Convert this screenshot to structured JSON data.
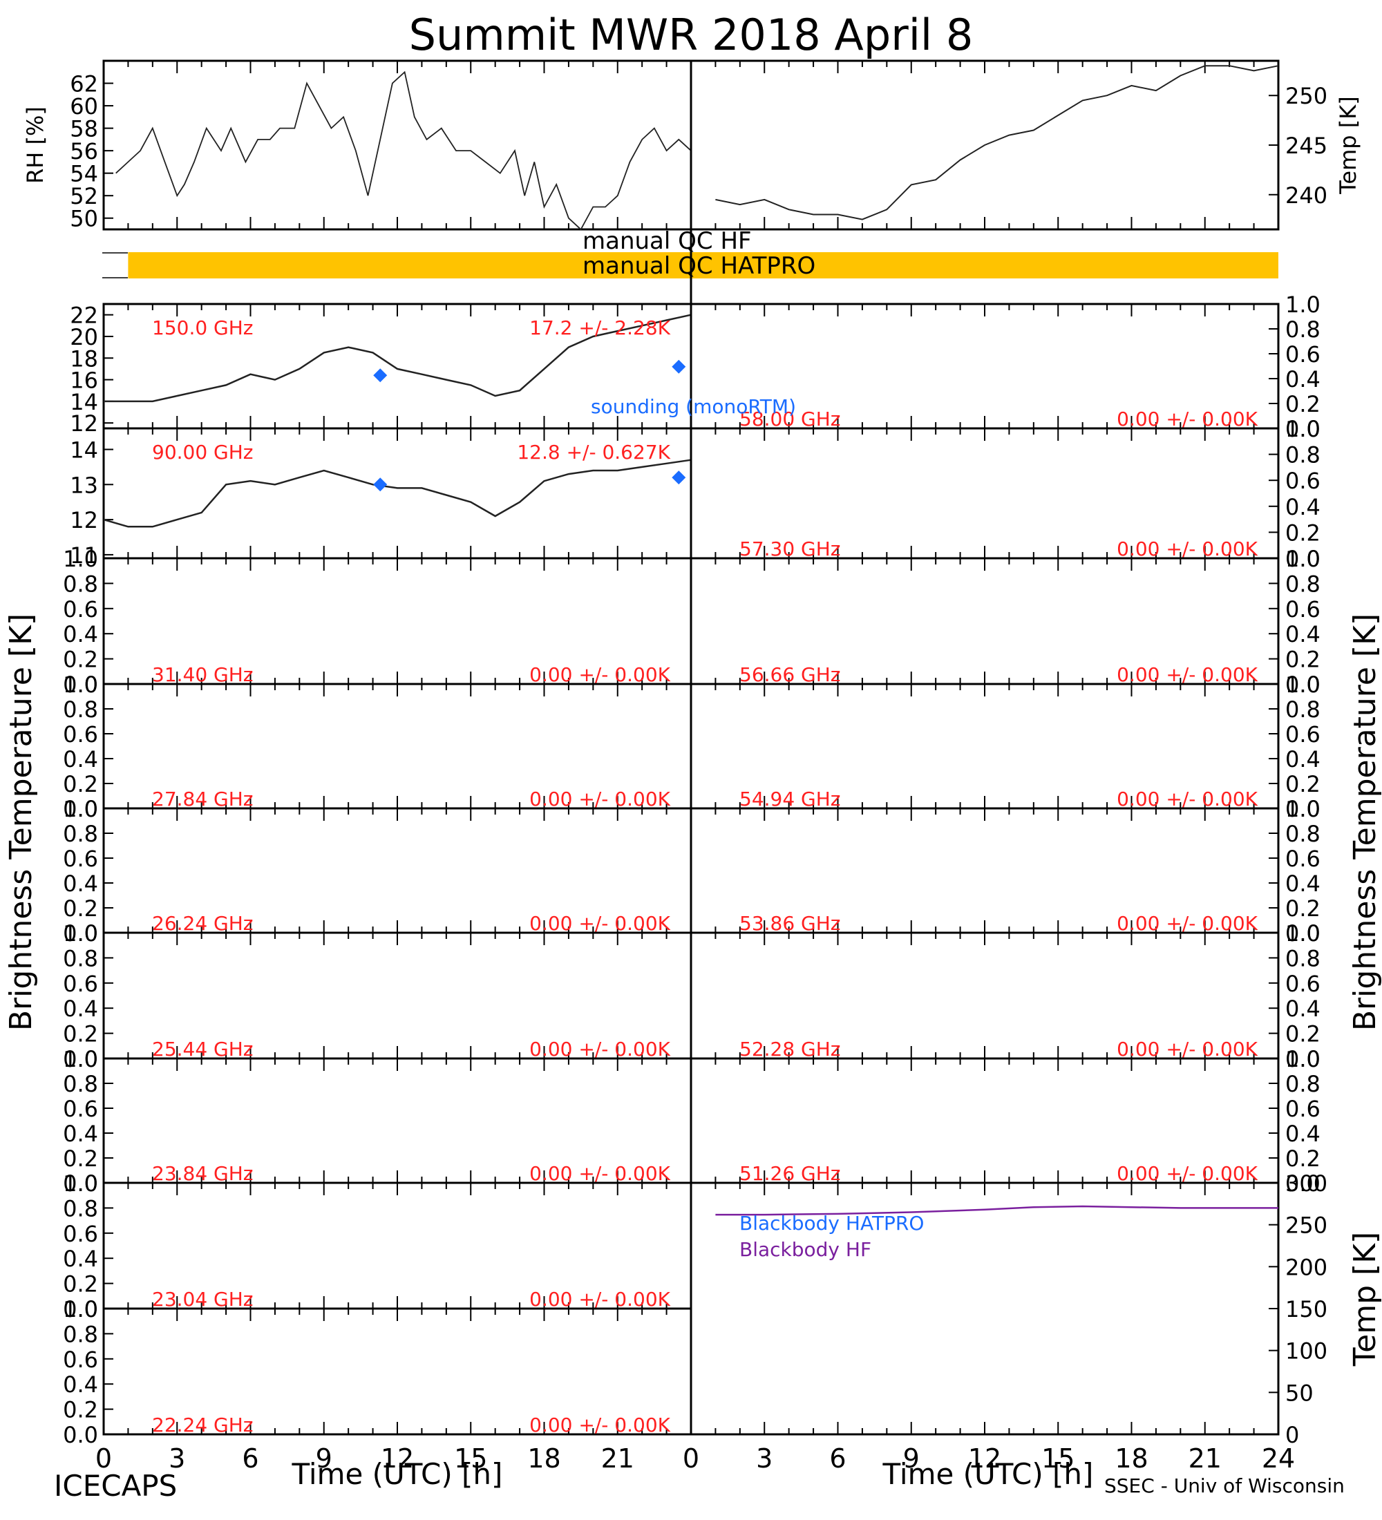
{
  "title": "Summit MWR 2018 April  8",
  "footer_left": "ICECAPS",
  "footer_right": "SSEC - Univ of Wisconsin",
  "colors": {
    "axis": "#000000",
    "label_red": "#ff2020",
    "sounding_blue": "#1a6cff",
    "qc_bar": "#ffc300",
    "blackbody_hf": "#7a1f9e",
    "blackbody_hatpro": "#1a6cff"
  },
  "chart_data": [
    {
      "id": "rh",
      "type": "line",
      "ylabel": "RH [%]",
      "ylim": [
        49,
        64
      ],
      "yticks": [
        50,
        52,
        54,
        56,
        58,
        60,
        62
      ],
      "x": [
        0.5,
        1.0,
        1.5,
        2.0,
        2.5,
        3.0,
        3.3,
        3.7,
        4.2,
        4.8,
        5.2,
        5.8,
        6.3,
        6.8,
        7.2,
        7.8,
        8.3,
        8.8,
        9.3,
        9.8,
        10.3,
        10.8,
        11.3,
        11.8,
        12.3,
        12.7,
        13.2,
        13.8,
        14.4,
        15.0,
        15.6,
        16.2,
        16.8,
        17.2,
        17.6,
        18.0,
        18.5,
        19.0,
        19.5,
        20.0,
        20.5,
        21.0,
        21.5,
        22.0,
        22.5,
        23.0,
        23.5,
        24.0
      ],
      "y": [
        54,
        55,
        56,
        58,
        55,
        52,
        53,
        55,
        58,
        56,
        58,
        55,
        57,
        57,
        58,
        58,
        62,
        60,
        58,
        59,
        56,
        52,
        57,
        62,
        63,
        59,
        57,
        58,
        56,
        56,
        55,
        54,
        56,
        52,
        55,
        51,
        53,
        50,
        49,
        51,
        51,
        52,
        55,
        57,
        58,
        56,
        57,
        56
      ],
      "annotations": []
    },
    {
      "id": "temp",
      "type": "line",
      "ylabel": "Temp [K]",
      "ylim": [
        236.5,
        253.5
      ],
      "yticks": [
        240,
        245,
        250
      ],
      "x": [
        1,
        2,
        3,
        4,
        5,
        6,
        7,
        8,
        9,
        10,
        11,
        12,
        13,
        14,
        15,
        16,
        17,
        18,
        19,
        20,
        21,
        22,
        23,
        24
      ],
      "y": [
        239.5,
        239,
        239.5,
        238.5,
        238,
        238,
        237.5,
        238.5,
        241,
        241.5,
        243.5,
        245,
        246,
        246.5,
        248,
        249.5,
        250,
        251,
        250.5,
        252,
        253,
        253,
        252.5,
        253
      ],
      "annotations": []
    },
    {
      "id": "tb150",
      "type": "line",
      "freq": "150.0 GHz",
      "stat": "17.2 +/- 2.28K",
      "ylim": [
        11.5,
        23
      ],
      "yticks": [
        12,
        14,
        16,
        18,
        20,
        22
      ],
      "x": [
        0,
        1,
        2,
        3,
        4,
        5,
        6,
        7,
        8,
        9,
        10,
        11,
        12,
        13,
        14,
        15,
        16,
        17,
        18,
        19,
        20,
        21,
        22,
        23,
        24
      ],
      "y": [
        14,
        14,
        14,
        14.5,
        15,
        15.5,
        16.5,
        16,
        17,
        18.5,
        19,
        18.5,
        17,
        16.5,
        16,
        15.5,
        14.5,
        15,
        17,
        19,
        20,
        20.5,
        21,
        21.5,
        22
      ],
      "sounding": {
        "x": [
          11.3,
          23.5
        ],
        "y": [
          16.4,
          17.2
        ]
      },
      "annotations": [
        "sounding (monoRTM)"
      ]
    },
    {
      "id": "tb90",
      "type": "line",
      "freq": "90.00 GHz",
      "stat": "12.8 +/- 0.627K",
      "ylim": [
        10.9,
        14.6
      ],
      "yticks": [
        11,
        12,
        13,
        14
      ],
      "x": [
        0,
        1,
        2,
        3,
        4,
        5,
        6,
        7,
        8,
        9,
        10,
        11,
        12,
        13,
        14,
        15,
        16,
        17,
        18,
        19,
        20,
        21,
        22,
        23,
        24
      ],
      "y": [
        12,
        11.8,
        11.8,
        12,
        12.2,
        13,
        13.1,
        13,
        13.2,
        13.4,
        13.2,
        13,
        12.9,
        12.9,
        12.7,
        12.5,
        12.1,
        12.5,
        13.1,
        13.3,
        13.4,
        13.4,
        13.5,
        13.6,
        13.7
      ],
      "sounding": {
        "x": [
          11.3,
          23.5
        ],
        "y": [
          13.0,
          13.2
        ]
      },
      "annotations": []
    },
    {
      "id": "tb58000",
      "type": "line",
      "freq": "58.00 GHz",
      "stat": "0.00 +/- 0.00K",
      "ylim": [
        0,
        1
      ],
      "yticks": [
        0.0,
        0.2,
        0.4,
        0.6,
        0.8,
        1.0
      ],
      "x": [],
      "y": []
    },
    {
      "id": "tb57300",
      "type": "line",
      "freq": "57.30 GHz",
      "stat": "0.00 +/- 0.00K",
      "ylim": [
        0,
        1
      ],
      "yticks": [
        0.0,
        0.2,
        0.4,
        0.6,
        0.8,
        1.0
      ],
      "x": [],
      "y": []
    },
    {
      "id": "tb31400",
      "type": "line",
      "freq": "31.40 GHz",
      "stat": "0.00 +/- 0.00K",
      "ylim": [
        0,
        1
      ],
      "yticks": [
        0.0,
        0.2,
        0.4,
        0.6,
        0.8,
        1.0
      ],
      "x": [],
      "y": []
    },
    {
      "id": "tb56660",
      "type": "line",
      "freq": "56.66 GHz",
      "stat": "0.00 +/- 0.00K",
      "ylim": [
        0,
        1
      ],
      "yticks": [
        0.0,
        0.2,
        0.4,
        0.6,
        0.8,
        1.0
      ],
      "x": [],
      "y": []
    },
    {
      "id": "tb27840",
      "type": "line",
      "freq": "27.84 GHz",
      "stat": "0.00 +/- 0.00K",
      "ylim": [
        0,
        1
      ],
      "yticks": [
        0.0,
        0.2,
        0.4,
        0.6,
        0.8,
        1.0
      ],
      "x": [],
      "y": []
    },
    {
      "id": "tb54940",
      "type": "line",
      "freq": "54.94 GHz",
      "stat": "0.00 +/- 0.00K",
      "ylim": [
        0,
        1
      ],
      "yticks": [
        0.0,
        0.2,
        0.4,
        0.6,
        0.8,
        1.0
      ],
      "x": [],
      "y": []
    },
    {
      "id": "tb26240",
      "type": "line",
      "freq": "26.24 GHz",
      "stat": "0.00 +/- 0.00K",
      "ylim": [
        0,
        1
      ],
      "yticks": [
        0.0,
        0.2,
        0.4,
        0.6,
        0.8,
        1.0
      ],
      "x": [],
      "y": []
    },
    {
      "id": "tb53860",
      "type": "line",
      "freq": "53.86 GHz",
      "stat": "0.00 +/- 0.00K",
      "ylim": [
        0,
        1
      ],
      "yticks": [
        0.0,
        0.2,
        0.4,
        0.6,
        0.8,
        1.0
      ],
      "x": [],
      "y": []
    },
    {
      "id": "tb25440",
      "type": "line",
      "freq": "25.44 GHz",
      "stat": "0.00 +/- 0.00K",
      "ylim": [
        0,
        1
      ],
      "yticks": [
        0.0,
        0.2,
        0.4,
        0.6,
        0.8,
        1.0
      ],
      "x": [],
      "y": []
    },
    {
      "id": "tb52280",
      "type": "line",
      "freq": "52.28 GHz",
      "stat": "0.00 +/- 0.00K",
      "ylim": [
        0,
        1
      ],
      "yticks": [
        0.0,
        0.2,
        0.4,
        0.6,
        0.8,
        1.0
      ],
      "x": [],
      "y": []
    },
    {
      "id": "tb23840",
      "type": "line",
      "freq": "23.84 GHz",
      "stat": "0.00 +/- 0.00K",
      "ylim": [
        0,
        1
      ],
      "yticks": [
        0.0,
        0.2,
        0.4,
        0.6,
        0.8,
        1.0
      ],
      "x": [],
      "y": []
    },
    {
      "id": "tb51260",
      "type": "line",
      "freq": "51.26 GHz",
      "stat": "0.00 +/- 0.00K",
      "ylim": [
        0,
        1
      ],
      "yticks": [
        0.0,
        0.2,
        0.4,
        0.6,
        0.8,
        1.0
      ],
      "x": [],
      "y": []
    },
    {
      "id": "tb23040",
      "type": "line",
      "freq": "23.04 GHz",
      "stat": "0.00 +/- 0.00K",
      "ylim": [
        0,
        1
      ],
      "yticks": [
        0.0,
        0.2,
        0.4,
        0.6,
        0.8,
        1.0
      ],
      "x": [],
      "y": []
    },
    {
      "id": "tb22240",
      "type": "line",
      "freq": "22.24 GHz",
      "stat": "0.00 +/- 0.00K",
      "ylim": [
        0,
        1
      ],
      "yticks": [
        0.0,
        0.2,
        0.4,
        0.6,
        0.8,
        1.0
      ],
      "x": [],
      "y": []
    },
    {
      "id": "blackbody",
      "type": "line",
      "ylabel": "Temp [K]",
      "ylim": [
        0,
        300
      ],
      "yticks": [
        0,
        50,
        100,
        150,
        200,
        250,
        300
      ],
      "series": [
        {
          "name": "Blackbody HATPRO",
          "x": [],
          "y": []
        },
        {
          "name": "Blackbody HF",
          "x": [
            1,
            3,
            6,
            9,
            12,
            14,
            16,
            18,
            20,
            22,
            24
          ],
          "y": [
            262,
            262,
            263,
            265,
            268,
            271,
            272,
            271,
            270,
            270,
            270
          ]
        }
      ],
      "annotations": []
    }
  ],
  "qc": {
    "hf_label": "manual   QC HF",
    "hatpro_label": "manual   QC HATPRO",
    "hatpro_range": [
      1,
      24
    ]
  },
  "shared": {
    "center_ylabel": "Brightness Temperature [K]",
    "xlabel": "Time (UTC) [h]",
    "xlim": [
      0,
      24
    ],
    "xticks": [
      0,
      3,
      6,
      9,
      12,
      15,
      18,
      21,
      24
    ],
    "left_xticks": [
      0,
      3,
      6,
      9,
      12,
      15,
      18,
      21
    ]
  }
}
